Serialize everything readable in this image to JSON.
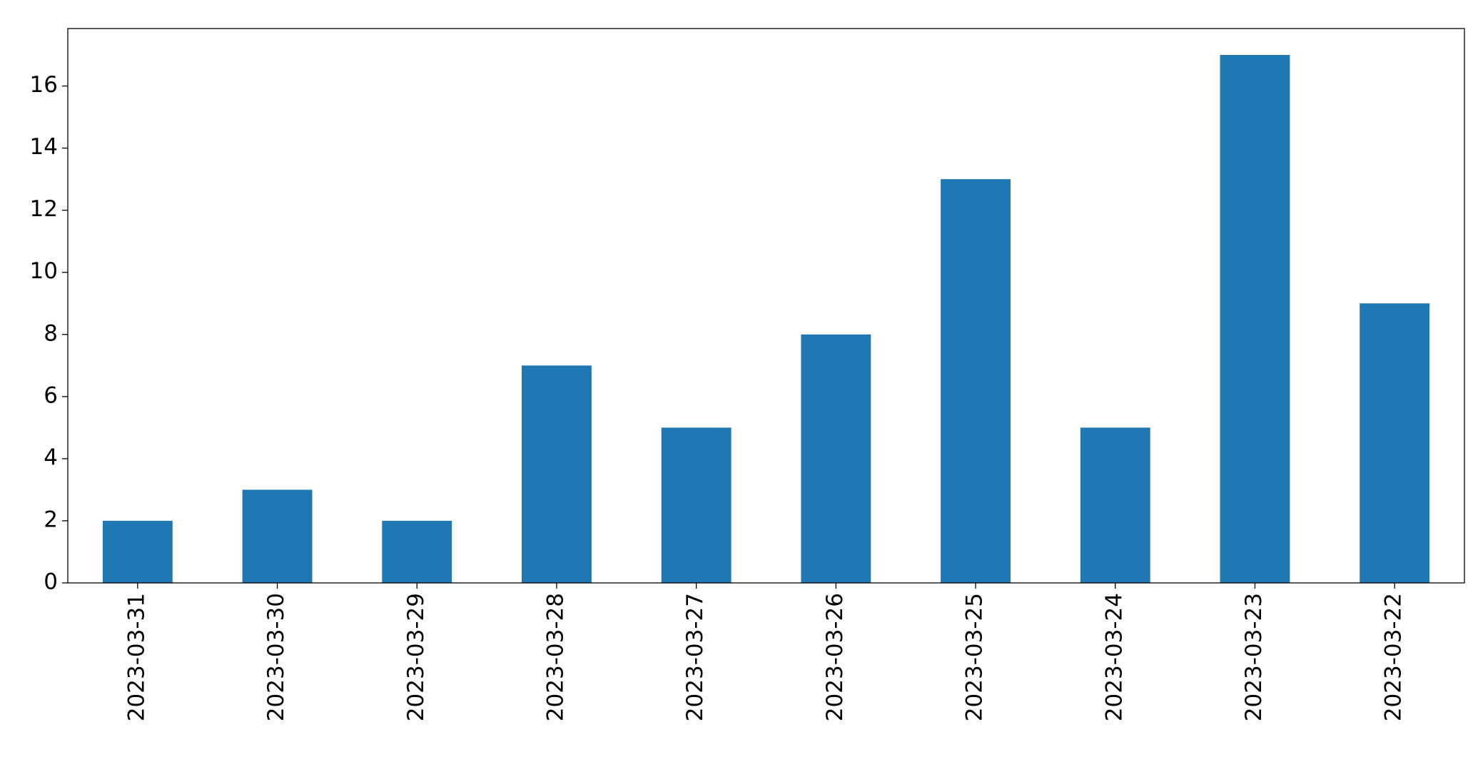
{
  "chart_data": {
    "type": "bar",
    "categories": [
      "2023-03-31",
      "2023-03-30",
      "2023-03-29",
      "2023-03-28",
      "2023-03-27",
      "2023-03-26",
      "2023-03-25",
      "2023-03-24",
      "2023-03-23",
      "2023-03-22"
    ],
    "values": [
      2,
      3,
      2,
      7,
      5,
      8,
      13,
      5,
      17,
      9
    ],
    "color": "#1f77b4",
    "ylim": [
      0,
      17.85
    ],
    "yticks": [
      0,
      2,
      4,
      6,
      8,
      10,
      12,
      14,
      16
    ],
    "grid": false
  }
}
